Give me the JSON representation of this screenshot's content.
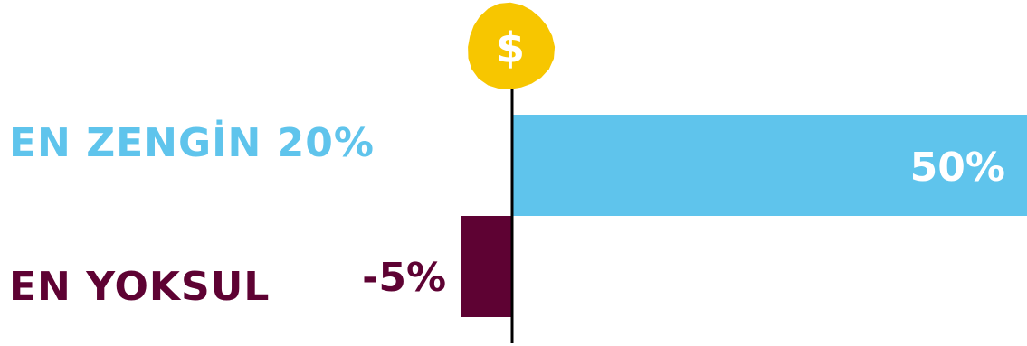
{
  "chart_data": {
    "type": "bar",
    "orientation": "horizontal",
    "categories": [
      "EN ZENGİN 20%",
      "EN YOKSUL"
    ],
    "values": [
      50,
      -5
    ],
    "value_labels": [
      "50%",
      "-5%"
    ],
    "colors": [
      "#5fc4ec",
      "#5e0233"
    ],
    "xlim": [
      -10,
      100
    ],
    "title": "",
    "xlabel": "",
    "ylabel": "",
    "grid": false,
    "legend": "none",
    "axis_marker": {
      "icon": "dollar-coin-icon",
      "symbol": "$",
      "color": "#f7c600"
    }
  }
}
